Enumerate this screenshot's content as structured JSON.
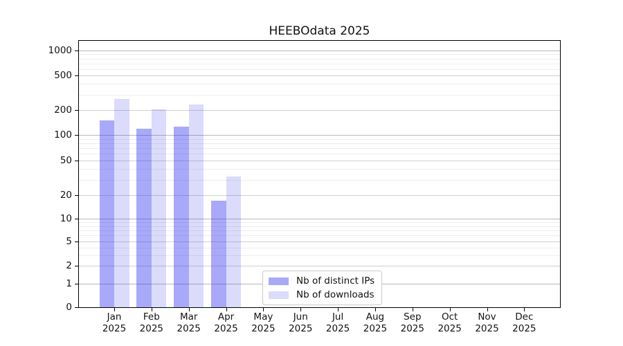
{
  "title": "HEEBOdata 2025",
  "legend": {
    "items": [
      {
        "label": "Nb of distinct IPs",
        "color": "rgba(40,40,240,0.40)"
      },
      {
        "label": "Nb of downloads",
        "color": "rgba(40,40,240,0.17)"
      }
    ]
  },
  "chart_data": {
    "type": "bar",
    "title": "HEEBOdata 2025",
    "categories": [
      "Jan 2025",
      "Feb 2025",
      "Mar 2025",
      "Apr 2025",
      "May 2025",
      "Jun 2025",
      "Jul 2025",
      "Aug 2025",
      "Sep 2025",
      "Oct 2025",
      "Nov 2025",
      "Dec 2025"
    ],
    "series": [
      {
        "name": "Nb of distinct IPs",
        "color": "rgba(40,40,240,0.40)",
        "values": [
          150,
          120,
          125,
          17,
          0,
          0,
          0,
          0,
          0,
          0,
          0,
          0
        ]
      },
      {
        "name": "Nb of downloads",
        "color": "rgba(40,40,240,0.17)",
        "values": [
          270,
          205,
          230,
          33,
          0,
          0,
          0,
          0,
          0,
          0,
          0,
          0
        ]
      }
    ],
    "xlabel": "",
    "ylabel": "",
    "yscale": "symlog",
    "yticks": [
      0,
      1,
      2,
      5,
      10,
      20,
      50,
      100,
      200,
      500,
      1000
    ],
    "ylim": [
      0,
      1300
    ],
    "grid": "both",
    "legend_position": "lower center inside"
  }
}
